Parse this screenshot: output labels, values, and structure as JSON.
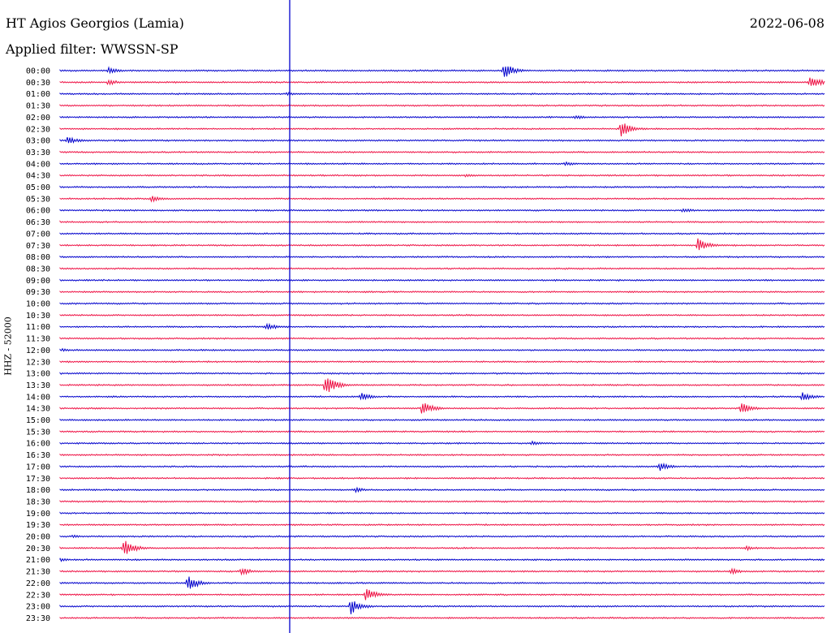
{
  "header": {
    "station": "HT Agios Georgios (Lamia)",
    "filter": "Applied filter: WWSSN-SP",
    "date": "2022-06-08",
    "channel": "HHZ - 52000"
  },
  "colors": {
    "even_trace": "#0000cc",
    "odd_trace": "#ee1144",
    "marker": "#0000cc"
  },
  "chart_data": {
    "type": "helicorder",
    "rows": [
      "00:00",
      "00:30",
      "01:00",
      "01:30",
      "02:00",
      "02:30",
      "03:00",
      "03:30",
      "04:00",
      "04:30",
      "05:00",
      "05:30",
      "06:00",
      "06:30",
      "07:00",
      "07:30",
      "08:00",
      "08:30",
      "09:00",
      "09:30",
      "10:00",
      "10:30",
      "11:00",
      "11:30",
      "12:00",
      "12:30",
      "13:00",
      "13:30",
      "14:00",
      "14:30",
      "15:00",
      "15:30",
      "16:00",
      "16:30",
      "17:00",
      "17:30",
      "18:00",
      "18:30",
      "19:00",
      "19:30",
      "20:00",
      "20:30",
      "21:00",
      "21:30",
      "22:00",
      "22:30",
      "23:00",
      "23:30"
    ],
    "events": [
      {
        "row": "00:00",
        "minute": 1.9,
        "amp": 4
      },
      {
        "row": "00:00",
        "minute": 17.4,
        "amp": 10
      },
      {
        "row": "00:30",
        "minute": 1.9,
        "amp": 4
      },
      {
        "row": "00:30",
        "minute": 29.4,
        "amp": 9
      },
      {
        "row": "01:00",
        "minute": 8.9,
        "amp": 2
      },
      {
        "row": "02:00",
        "minute": 20.2,
        "amp": 3
      },
      {
        "row": "02:30",
        "minute": 22.0,
        "amp": 10
      },
      {
        "row": "03:00",
        "minute": 0.3,
        "amp": 5
      },
      {
        "row": "04:00",
        "minute": 19.8,
        "amp": 3
      },
      {
        "row": "04:30",
        "minute": 15.9,
        "amp": 2
      },
      {
        "row": "05:30",
        "minute": 3.6,
        "amp": 4
      },
      {
        "row": "06:00",
        "minute": 24.4,
        "amp": 3
      },
      {
        "row": "07:30",
        "minute": 25.0,
        "amp": 9
      },
      {
        "row": "11:00",
        "minute": 8.1,
        "amp": 5
      },
      {
        "row": "12:00",
        "minute": 0.1,
        "amp": 2
      },
      {
        "row": "13:30",
        "minute": 10.4,
        "amp": 13
      },
      {
        "row": "14:00",
        "minute": 11.8,
        "amp": 5
      },
      {
        "row": "14:00",
        "minute": 29.1,
        "amp": 6
      },
      {
        "row": "14:30",
        "minute": 14.2,
        "amp": 9
      },
      {
        "row": "14:30",
        "minute": 26.7,
        "amp": 7
      },
      {
        "row": "16:00",
        "minute": 18.5,
        "amp": 3
      },
      {
        "row": "17:00",
        "minute": 23.5,
        "amp": 6
      },
      {
        "row": "18:00",
        "minute": 11.6,
        "amp": 3
      },
      {
        "row": "20:00",
        "minute": 0.5,
        "amp": 2
      },
      {
        "row": "20:30",
        "minute": 2.5,
        "amp": 11
      },
      {
        "row": "20:30",
        "minute": 26.9,
        "amp": 3
      },
      {
        "row": "21:00",
        "minute": -0.1,
        "amp": 3
      },
      {
        "row": "21:30",
        "minute": 7.1,
        "amp": 5
      },
      {
        "row": "21:30",
        "minute": 26.3,
        "amp": 4
      },
      {
        "row": "22:00",
        "minute": 5.0,
        "amp": 10
      },
      {
        "row": "22:30",
        "minute": 12.0,
        "amp": 9
      },
      {
        "row": "23:00",
        "minute": 11.4,
        "amp": 10
      }
    ]
  }
}
